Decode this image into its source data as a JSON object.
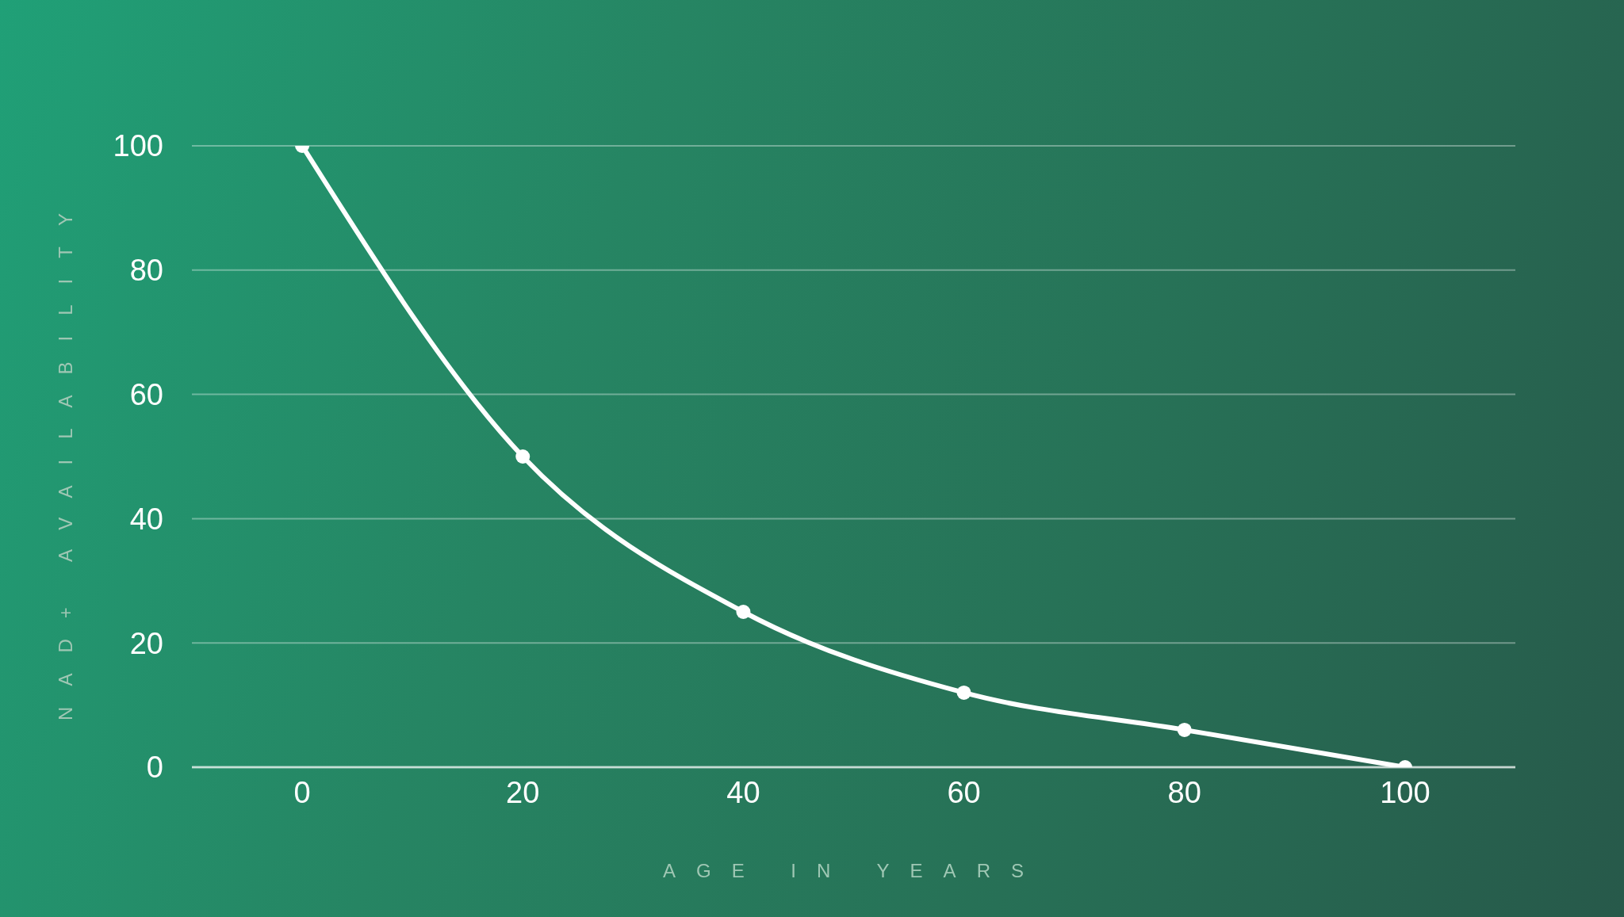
{
  "chart_data": {
    "type": "line",
    "xlabel": "AGE IN YEARS",
    "ylabel": "NAD+ AVAILABILITY",
    "x": [
      0,
      20,
      40,
      60,
      80,
      100
    ],
    "series": [
      {
        "color": "#ffffff",
        "values": [
          100,
          50,
          25,
          12,
          6,
          0
        ]
      }
    ],
    "xlim": [
      -10,
      110
    ],
    "xticks": [
      0,
      20,
      40,
      60,
      80,
      100
    ],
    "ylim": [
      0,
      100
    ],
    "yticks": [
      0,
      20,
      40,
      60,
      80,
      100
    ],
    "grid": "y",
    "marker": "circle",
    "line_style": "solid"
  }
}
